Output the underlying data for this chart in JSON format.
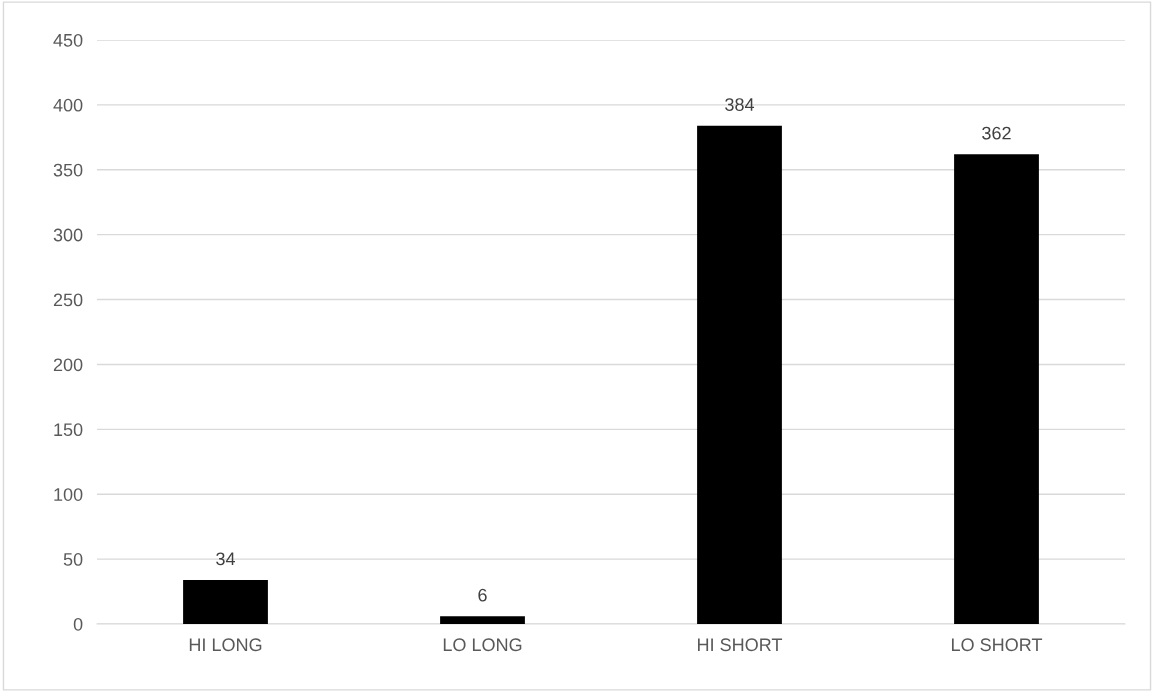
{
  "chart_data": {
    "type": "bar",
    "categories": [
      "HI LONG",
      "LO LONG",
      "HI SHORT",
      "LO SHORT"
    ],
    "values": [
      34,
      6,
      384,
      362
    ],
    "color": "#000000",
    "ylim": [
      0,
      450
    ],
    "yticks": [
      0,
      50,
      100,
      150,
      200,
      250,
      300,
      350,
      400,
      450
    ],
    "grid": "y",
    "data_labels": true,
    "legend": false
  }
}
